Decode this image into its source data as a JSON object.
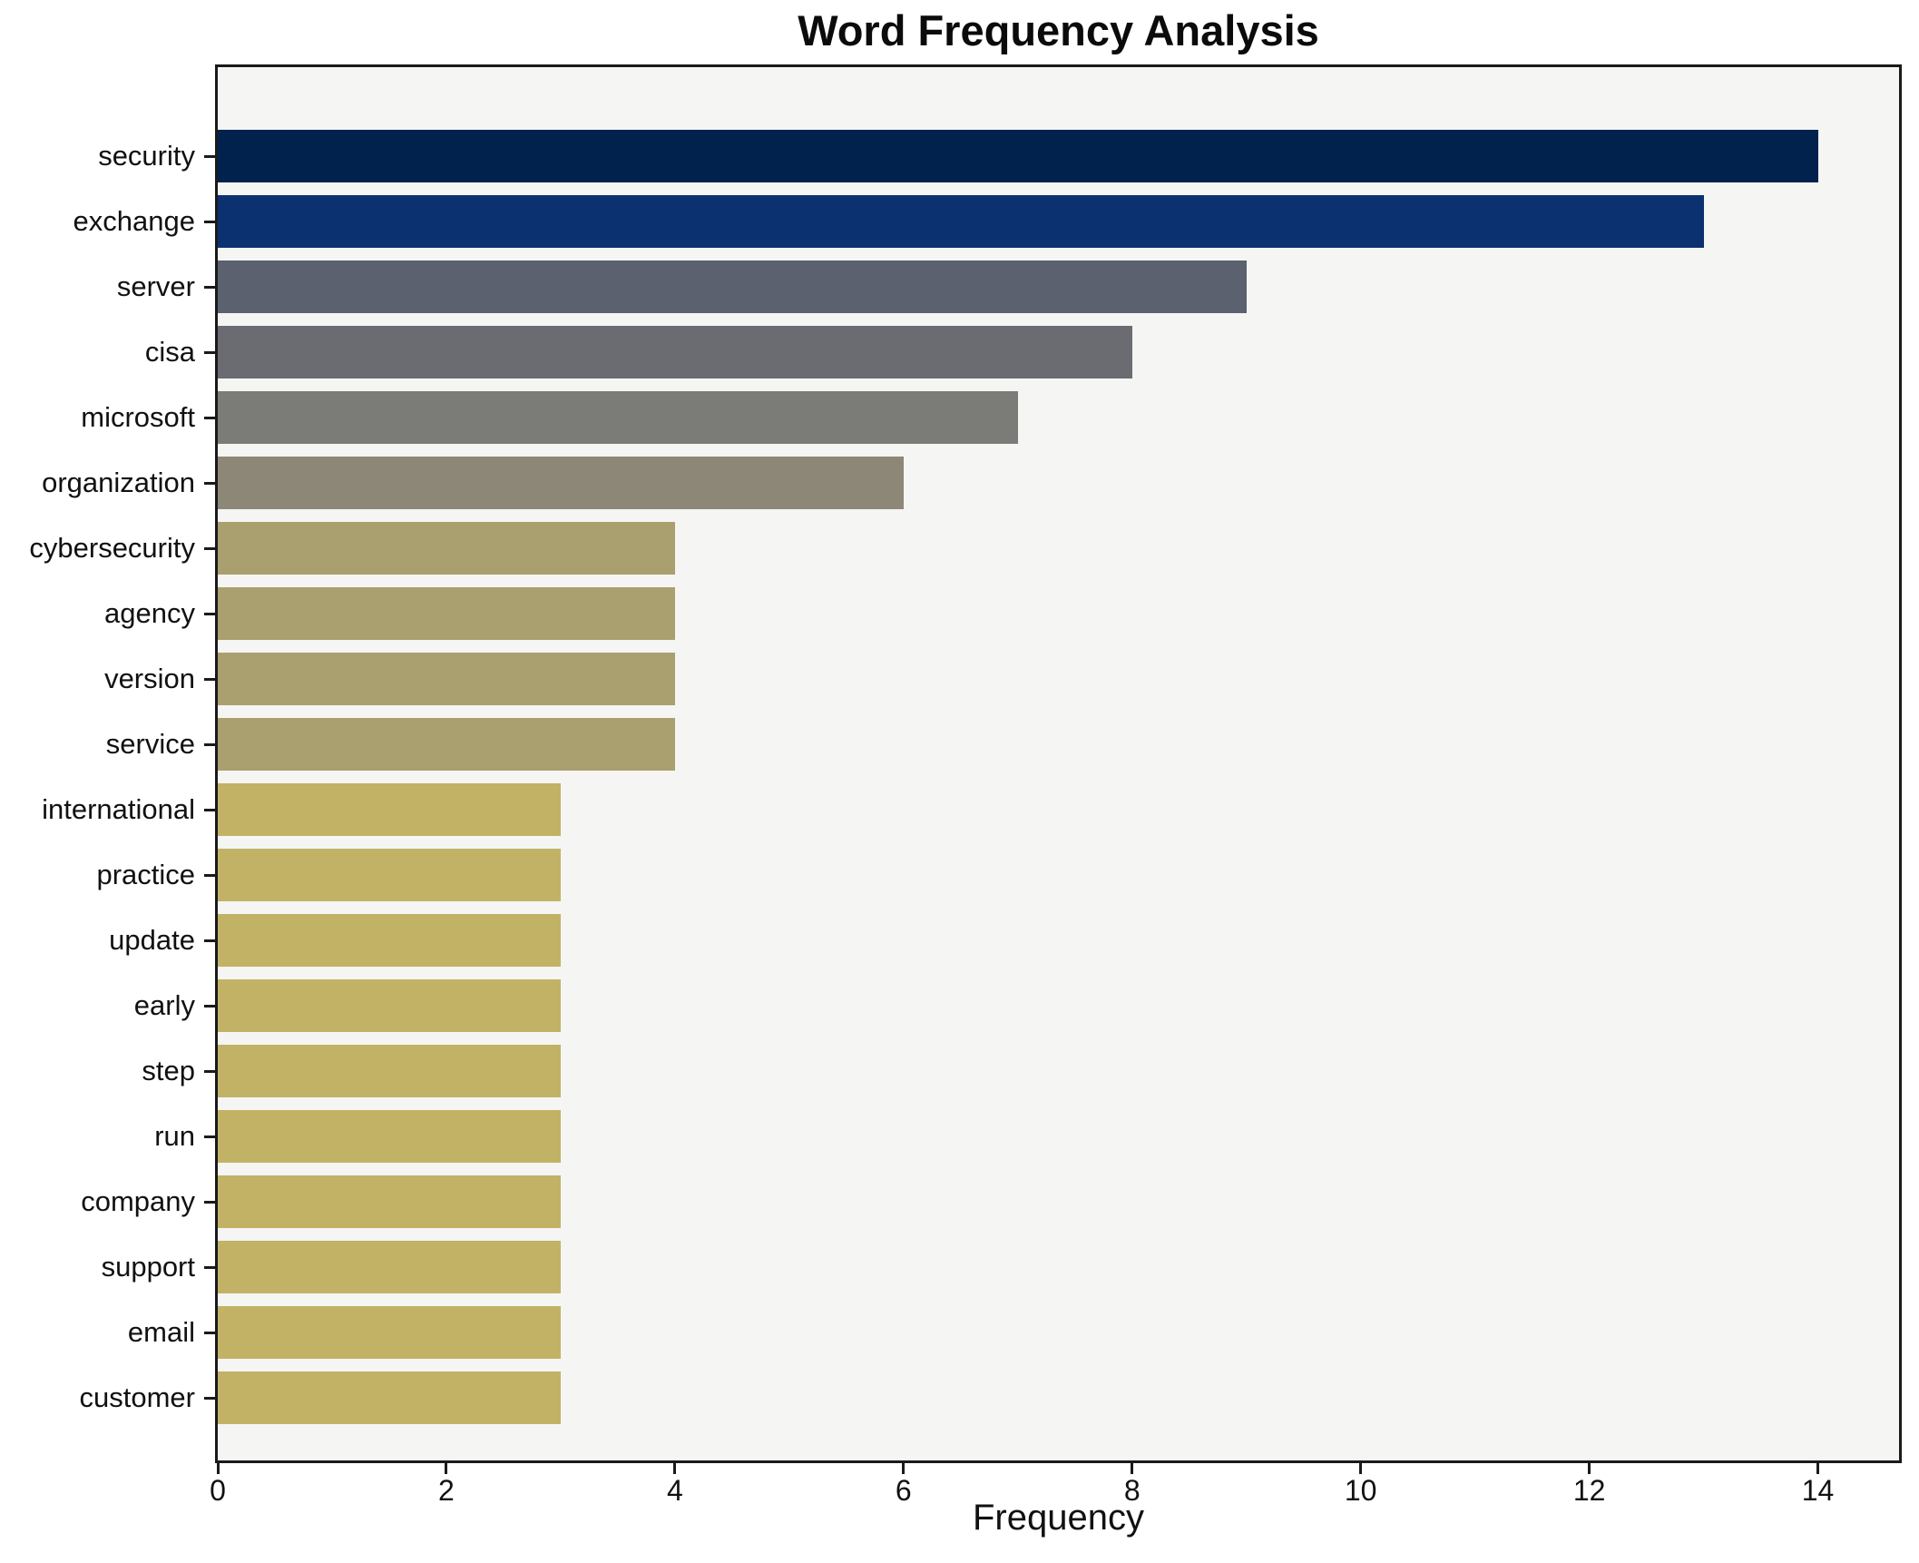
{
  "chart_data": {
    "type": "bar",
    "orientation": "horizontal",
    "title": "Word Frequency Analysis",
    "xlabel": "Frequency",
    "ylabel": "",
    "categories": [
      "security",
      "exchange",
      "server",
      "cisa",
      "microsoft",
      "organization",
      "cybersecurity",
      "agency",
      "version",
      "service",
      "international",
      "practice",
      "update",
      "early",
      "step",
      "run",
      "company",
      "support",
      "email",
      "customer"
    ],
    "values": [
      14,
      13,
      9,
      8,
      7,
      6,
      4,
      4,
      4,
      4,
      3,
      3,
      3,
      3,
      3,
      3,
      3,
      3,
      3,
      3
    ],
    "bar_colors": [
      "#02224e",
      "#0c3170",
      "#5c6170",
      "#6a6c71",
      "#7b7c77",
      "#8d8777",
      "#aa9f6e",
      "#aa9f6e",
      "#aa9f6e",
      "#aa9f6e",
      "#c2b266",
      "#c2b266",
      "#c2b266",
      "#c2b266",
      "#c2b266",
      "#c2b266",
      "#c2b266",
      "#c2b266",
      "#c2b266",
      "#c2b266"
    ],
    "xlim": [
      0,
      14.71
    ],
    "xticks": [
      0,
      2,
      4,
      6,
      8,
      10,
      12,
      14
    ],
    "grid": false,
    "legend": "none",
    "plot_background": "#f5f5f4",
    "figure_background": "#ffffff",
    "spine_color": "#1a1a1a",
    "text_color": "#111111"
  }
}
